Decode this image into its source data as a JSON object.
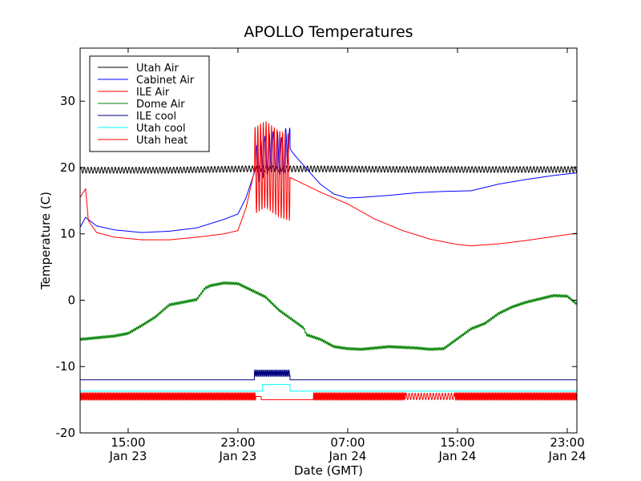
{
  "chart_data": {
    "type": "line",
    "title": "APOLLO Temperatures",
    "xlabel": "Date (GMT)",
    "ylabel": "Temperature (C)",
    "x_unit": "hours since Jan 23 00:00 GMT",
    "xlim": [
      11.5,
      47.7
    ],
    "ylim": [
      -20,
      38
    ],
    "y_ticks": [
      -20,
      -10,
      0,
      10,
      20,
      30
    ],
    "x_ticks": [
      {
        "x": 15,
        "line1": "15:00",
        "line2": "Jan 23"
      },
      {
        "x": 23,
        "line1": "23:00",
        "line2": "Jan 23"
      },
      {
        "x": 31,
        "line1": "07:00",
        "line2": "Jan 24"
      },
      {
        "x": 39,
        "line1": "15:00",
        "line2": "Jan 24"
      },
      {
        "x": 47,
        "line1": "23:00",
        "line2": "Jan 24"
      }
    ],
    "legend_position": "upper-left",
    "series": [
      {
        "name": "Utah Air",
        "color": "#000000",
        "points": [
          [
            11.5,
            19.6
          ],
          [
            18,
            19.6
          ],
          [
            23.5,
            19.8
          ],
          [
            28.5,
            19.8
          ],
          [
            36,
            19.7
          ],
          [
            47.7,
            19.7
          ]
        ],
        "oscillation": {
          "from": 11.5,
          "to": 47.7,
          "amplitude": 0.45,
          "period": 0.25
        }
      },
      {
        "name": "Cabinet Air",
        "color": "#0000ff",
        "points": [
          [
            11.5,
            11.0
          ],
          [
            11.9,
            12.5
          ],
          [
            12.7,
            11.2
          ],
          [
            14,
            10.6
          ],
          [
            16,
            10.2
          ],
          [
            18,
            10.4
          ],
          [
            20,
            10.9
          ],
          [
            22,
            12.2
          ],
          [
            23,
            13.0
          ],
          [
            23.6,
            15.5
          ],
          [
            24.4,
            20.5
          ],
          [
            25.2,
            22.2
          ],
          [
            25.8,
            22.6
          ],
          [
            26.2,
            21.5
          ],
          [
            26.6,
            23.5
          ],
          [
            27,
            22.2
          ],
          [
            28,
            19.8
          ],
          [
            29,
            17.5
          ],
          [
            30,
            16.0
          ],
          [
            31,
            15.4
          ],
          [
            32,
            15.5
          ],
          [
            34,
            15.8
          ],
          [
            36,
            16.2
          ],
          [
            38,
            16.4
          ],
          [
            40,
            16.5
          ],
          [
            42,
            17.5
          ],
          [
            44,
            18.2
          ],
          [
            46,
            18.8
          ],
          [
            47.7,
            19.2
          ]
        ],
        "oscillation": {
          "from": 24.3,
          "to": 26.8,
          "amplitude": 3.0,
          "period": 0.3
        }
      },
      {
        "name": "ILE Air",
        "color": "#ff0000",
        "points": [
          [
            11.5,
            15.5
          ],
          [
            11.9,
            16.8
          ],
          [
            12.1,
            12.0
          ],
          [
            12.7,
            10.2
          ],
          [
            14,
            9.5
          ],
          [
            16,
            9.1
          ],
          [
            18,
            9.1
          ],
          [
            20,
            9.5
          ],
          [
            22,
            10.0
          ],
          [
            23,
            10.5
          ],
          [
            23.6,
            14.0
          ],
          [
            24.2,
            19.5
          ],
          [
            25,
            20.5
          ],
          [
            26,
            19.0
          ],
          [
            26.8,
            18.5
          ],
          [
            27.5,
            17.8
          ],
          [
            29,
            16.3
          ],
          [
            31,
            14.5
          ],
          [
            33,
            12.2
          ],
          [
            35,
            10.5
          ],
          [
            37,
            9.2
          ],
          [
            39,
            8.4
          ],
          [
            40,
            8.2
          ],
          [
            42,
            8.5
          ],
          [
            44,
            9.0
          ],
          [
            46,
            9.6
          ],
          [
            47.7,
            10.1
          ]
        ],
        "oscillation": {
          "from": 24.2,
          "to": 26.8,
          "amplitude": 6.5,
          "period": 0.2
        }
      },
      {
        "name": "Dome Air",
        "color": "#008000",
        "points": [
          [
            11.5,
            -5.9
          ],
          [
            13,
            -5.6
          ],
          [
            14,
            -5.4
          ],
          [
            15,
            -5.0
          ],
          [
            16,
            -3.8
          ],
          [
            17,
            -2.5
          ],
          [
            18,
            -0.7
          ],
          [
            19,
            -0.3
          ],
          [
            20,
            0.1
          ],
          [
            20.6,
            1.8
          ],
          [
            21,
            2.2
          ],
          [
            22,
            2.6
          ],
          [
            23,
            2.5
          ],
          [
            24,
            1.5
          ],
          [
            25,
            0.5
          ],
          [
            26,
            -1.5
          ],
          [
            27,
            -3.0
          ],
          [
            27.8,
            -4.2
          ],
          [
            28,
            -5.2
          ],
          [
            29,
            -5.9
          ],
          [
            30,
            -7.0
          ],
          [
            31,
            -7.3
          ],
          [
            32,
            -7.4
          ],
          [
            33,
            -7.2
          ],
          [
            34,
            -7.0
          ],
          [
            35,
            -7.1
          ],
          [
            36,
            -7.2
          ],
          [
            37,
            -7.4
          ],
          [
            38,
            -7.3
          ],
          [
            39,
            -5.8
          ],
          [
            40,
            -4.3
          ],
          [
            41,
            -3.5
          ],
          [
            42,
            -2.0
          ],
          [
            43,
            -1.0
          ],
          [
            44,
            -0.3
          ],
          [
            45,
            0.2
          ],
          [
            46,
            0.7
          ],
          [
            47,
            0.6
          ],
          [
            47.7,
            -0.6
          ]
        ],
        "oscillation": {
          "from": 11.5,
          "to": 47.7,
          "amplitude": 0.2,
          "period": 0.12
        }
      },
      {
        "name": "ILE cool",
        "color": "#000080",
        "points": [
          [
            11.5,
            -12.0
          ],
          [
            24.2,
            -12.0
          ],
          [
            24.2,
            -11.0
          ],
          [
            26.8,
            -11.0
          ],
          [
            26.8,
            -12.0
          ],
          [
            47.7,
            -12.0
          ]
        ],
        "oscillation": {
          "from": 24.2,
          "to": 26.8,
          "amplitude": 0.5,
          "period": 0.1
        }
      },
      {
        "name": "Utah cool",
        "color": "#00ffff",
        "points": [
          [
            11.5,
            -13.7
          ],
          [
            24.8,
            -13.7
          ],
          [
            24.8,
            -12.7
          ],
          [
            26.8,
            -12.7
          ],
          [
            26.8,
            -13.7
          ],
          [
            47.7,
            -13.7
          ]
        ]
      },
      {
        "name": "Utah heat",
        "color": "#ff0000",
        "points": [
          [
            11.5,
            -14.5
          ],
          [
            24.7,
            -14.5
          ],
          [
            24.7,
            -15.0
          ],
          [
            28.5,
            -15.0
          ],
          [
            28.5,
            -14.5
          ],
          [
            47.7,
            -14.5
          ]
        ],
        "oscillation_segments": [
          {
            "from": 11.5,
            "to": 24.3,
            "amplitude": 0.55,
            "period": 0.08
          },
          {
            "from": 28.5,
            "to": 35.2,
            "amplitude": 0.55,
            "period": 0.08
          },
          {
            "from": 35.2,
            "to": 38.8,
            "amplitude": 0.5,
            "period": 0.22
          },
          {
            "from": 38.8,
            "to": 47.7,
            "amplitude": 0.55,
            "period": 0.08
          }
        ]
      }
    ]
  }
}
